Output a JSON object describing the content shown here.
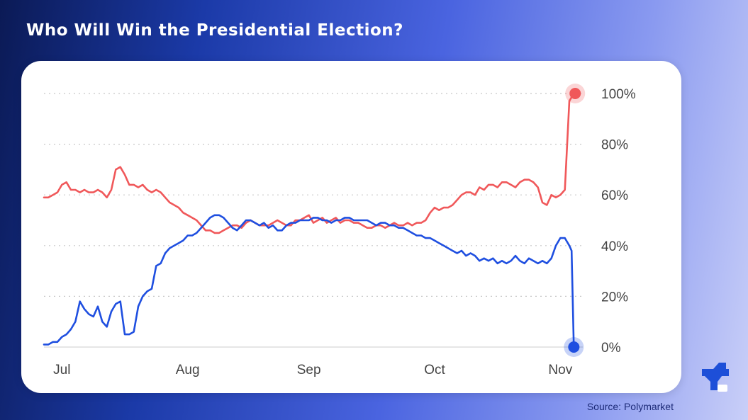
{
  "headline": "Who Will Win the Presidential Election?",
  "source": "Source: Polymarket",
  "logo_name": "brand-logo",
  "colors": {
    "red": "#f0585a",
    "blue": "#1f4fe0",
    "grid": "#c8c8c8",
    "label": "#444444"
  },
  "chart_data": {
    "type": "line",
    "title": "Who Will Win the Presidential Election?",
    "xlabel": "",
    "ylabel": "",
    "ylim": [
      0,
      100
    ],
    "x_ticks": [
      "Jul",
      "Aug",
      "Sep",
      "Oct",
      "Nov"
    ],
    "y_ticks": [
      "0%",
      "20%",
      "40%",
      "60%",
      "80%",
      "100%"
    ],
    "y_tick_values": [
      0,
      20,
      40,
      60,
      80,
      100
    ],
    "x_range": [
      0,
      120
    ],
    "x_tick_positions": [
      4,
      32,
      59,
      87,
      115
    ],
    "series": [
      {
        "name": "red",
        "color": "#f0585a",
        "x": [
          0,
          1,
          2,
          3,
          4,
          5,
          6,
          7,
          8,
          9,
          10,
          11,
          12,
          13,
          14,
          15,
          16,
          17,
          18,
          19,
          20,
          21,
          22,
          23,
          24,
          25,
          26,
          27,
          28,
          29,
          30,
          31,
          32,
          33,
          34,
          35,
          36,
          37,
          38,
          39,
          40,
          41,
          42,
          43,
          44,
          45,
          46,
          47,
          48,
          49,
          50,
          51,
          52,
          53,
          54,
          55,
          56,
          57,
          58,
          59,
          60,
          61,
          62,
          63,
          64,
          65,
          66,
          67,
          68,
          69,
          70,
          71,
          72,
          73,
          74,
          75,
          76,
          77,
          78,
          79,
          80,
          81,
          82,
          83,
          84,
          85,
          86,
          87,
          88,
          89,
          90,
          91,
          92,
          93,
          94,
          95,
          96,
          97,
          98,
          99,
          100,
          101,
          102,
          103,
          104,
          105,
          106,
          107,
          108,
          109,
          110,
          111,
          112,
          113,
          114,
          115,
          116,
          117,
          118,
          118.3
        ],
        "values": [
          59,
          59,
          60,
          61,
          64,
          65,
          62,
          62,
          61,
          62,
          61,
          61,
          62,
          61,
          59,
          62,
          70,
          71,
          68,
          64,
          64,
          63,
          64,
          62,
          61,
          62,
          61,
          59,
          57,
          56,
          55,
          53,
          52,
          51,
          50,
          48,
          46,
          46,
          45,
          45,
          46,
          47,
          48,
          48,
          47,
          49,
          50,
          49,
          48,
          48,
          48,
          49,
          50,
          49,
          48,
          48,
          50,
          50,
          51,
          52,
          49,
          50,
          51,
          49,
          50,
          51,
          49,
          50,
          50,
          49,
          49,
          48,
          47,
          47,
          48,
          48,
          47,
          48,
          49,
          48,
          48,
          49,
          48,
          49,
          49,
          50,
          53,
          55,
          54,
          55,
          55,
          56,
          58,
          60,
          61,
          61,
          60,
          63,
          62,
          64,
          64,
          63,
          65,
          65,
          64,
          63,
          65,
          66,
          66,
          65,
          63,
          57,
          56,
          60,
          59,
          60,
          62,
          97,
          100,
          100
        ]
      },
      {
        "name": "blue",
        "color": "#1f4fe0",
        "x": [
          0,
          1,
          2,
          3,
          4,
          5,
          6,
          7,
          8,
          9,
          10,
          11,
          12,
          13,
          14,
          15,
          16,
          17,
          18,
          19,
          20,
          21,
          22,
          23,
          24,
          25,
          26,
          27,
          28,
          29,
          30,
          31,
          32,
          33,
          34,
          35,
          36,
          37,
          38,
          39,
          40,
          41,
          42,
          43,
          44,
          45,
          46,
          47,
          48,
          49,
          50,
          51,
          52,
          53,
          54,
          55,
          56,
          57,
          58,
          59,
          60,
          61,
          62,
          63,
          64,
          65,
          66,
          67,
          68,
          69,
          70,
          71,
          72,
          73,
          74,
          75,
          76,
          77,
          78,
          79,
          80,
          81,
          82,
          83,
          84,
          85,
          86,
          87,
          88,
          89,
          90,
          91,
          92,
          93,
          94,
          95,
          96,
          97,
          98,
          99,
          100,
          101,
          102,
          103,
          104,
          105,
          106,
          107,
          108,
          109,
          110,
          111,
          112,
          113,
          114,
          115,
          116,
          117,
          117.5,
          118
        ],
        "values": [
          1,
          1,
          2,
          2,
          4,
          5,
          7,
          10,
          18,
          15,
          13,
          12,
          16,
          10,
          8,
          14,
          17,
          18,
          5,
          5,
          6,
          16,
          20,
          22,
          23,
          32,
          33,
          37,
          39,
          40,
          41,
          42,
          44,
          44,
          45,
          47,
          49,
          51,
          52,
          52,
          51,
          49,
          47,
          46,
          48,
          50,
          50,
          49,
          48,
          49,
          47,
          48,
          46,
          46,
          48,
          49,
          49,
          50,
          50,
          50,
          51,
          51,
          50,
          50,
          49,
          50,
          50,
          51,
          51,
          50,
          50,
          50,
          50,
          49,
          48,
          49,
          49,
          48,
          48,
          47,
          47,
          46,
          45,
          44,
          44,
          43,
          43,
          42,
          41,
          40,
          39,
          38,
          37,
          38,
          36,
          37,
          36,
          34,
          35,
          34,
          35,
          33,
          34,
          33,
          34,
          36,
          34,
          33,
          35,
          34,
          33,
          34,
          33,
          35,
          40,
          43,
          43,
          40,
          38,
          0
        ]
      }
    ]
  }
}
